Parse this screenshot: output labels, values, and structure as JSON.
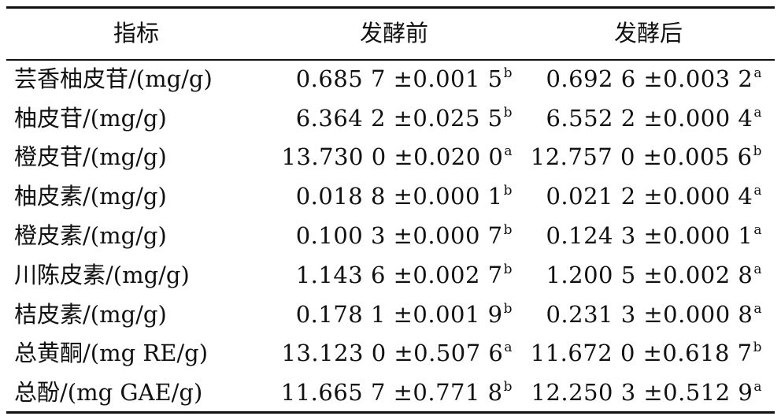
{
  "table": {
    "headers": [
      "指标",
      "发酵前",
      "发酵后"
    ],
    "rows": [
      {
        "indicator": "芸香柚皮苷/(mg/g)",
        "before": "0.685 7 ±0.001 5",
        "before_sup": "b",
        "after": "0.692 6 ±0.003 2",
        "after_sup": "a"
      },
      {
        "indicator": "柚皮苷/(mg/g)",
        "before": "6.364 2 ±0.025 5",
        "before_sup": "b",
        "after": "6.552 2 ±0.000 4",
        "after_sup": "a"
      },
      {
        "indicator": "橙皮苷/(mg/g)",
        "before": "13.730 0 ±0.020 0",
        "before_sup": "a",
        "after": "12.757 0 ±0.005 6",
        "after_sup": "b"
      },
      {
        "indicator": "柚皮素/(mg/g)",
        "before": "0.018 8 ±0.000 1",
        "before_sup": "b",
        "after": "0.021 2 ±0.000 4",
        "after_sup": "a"
      },
      {
        "indicator": "橙皮素/(mg/g)",
        "before": "0.100 3 ±0.000 7",
        "before_sup": "b",
        "after": "0.124 3 ±0.000 1",
        "after_sup": "a"
      },
      {
        "indicator": "川陈皮素/(mg/g)",
        "before": "1.143 6 ±0.002 7",
        "before_sup": "b",
        "after": "1.200 5 ±0.002 8",
        "after_sup": "a"
      },
      {
        "indicator": "桔皮素/(mg/g)",
        "before": "0.178 1 ±0.001 9",
        "before_sup": "b",
        "after": "0.231 3 ±0.000 8",
        "after_sup": "a"
      },
      {
        "indicator": "总黄酮/(mg RE/g)",
        "before": "13.123 0 ±0.507 6",
        "before_sup": "a",
        "after": "11.672 0 ±0.618 7",
        "after_sup": "b"
      },
      {
        "indicator": "总酚/(mg GAE/g)",
        "before": "11.665 7 ±0.771 8",
        "before_sup": "b",
        "after": "12.250 3 ±0.512 9",
        "after_sup": "a"
      }
    ]
  }
}
